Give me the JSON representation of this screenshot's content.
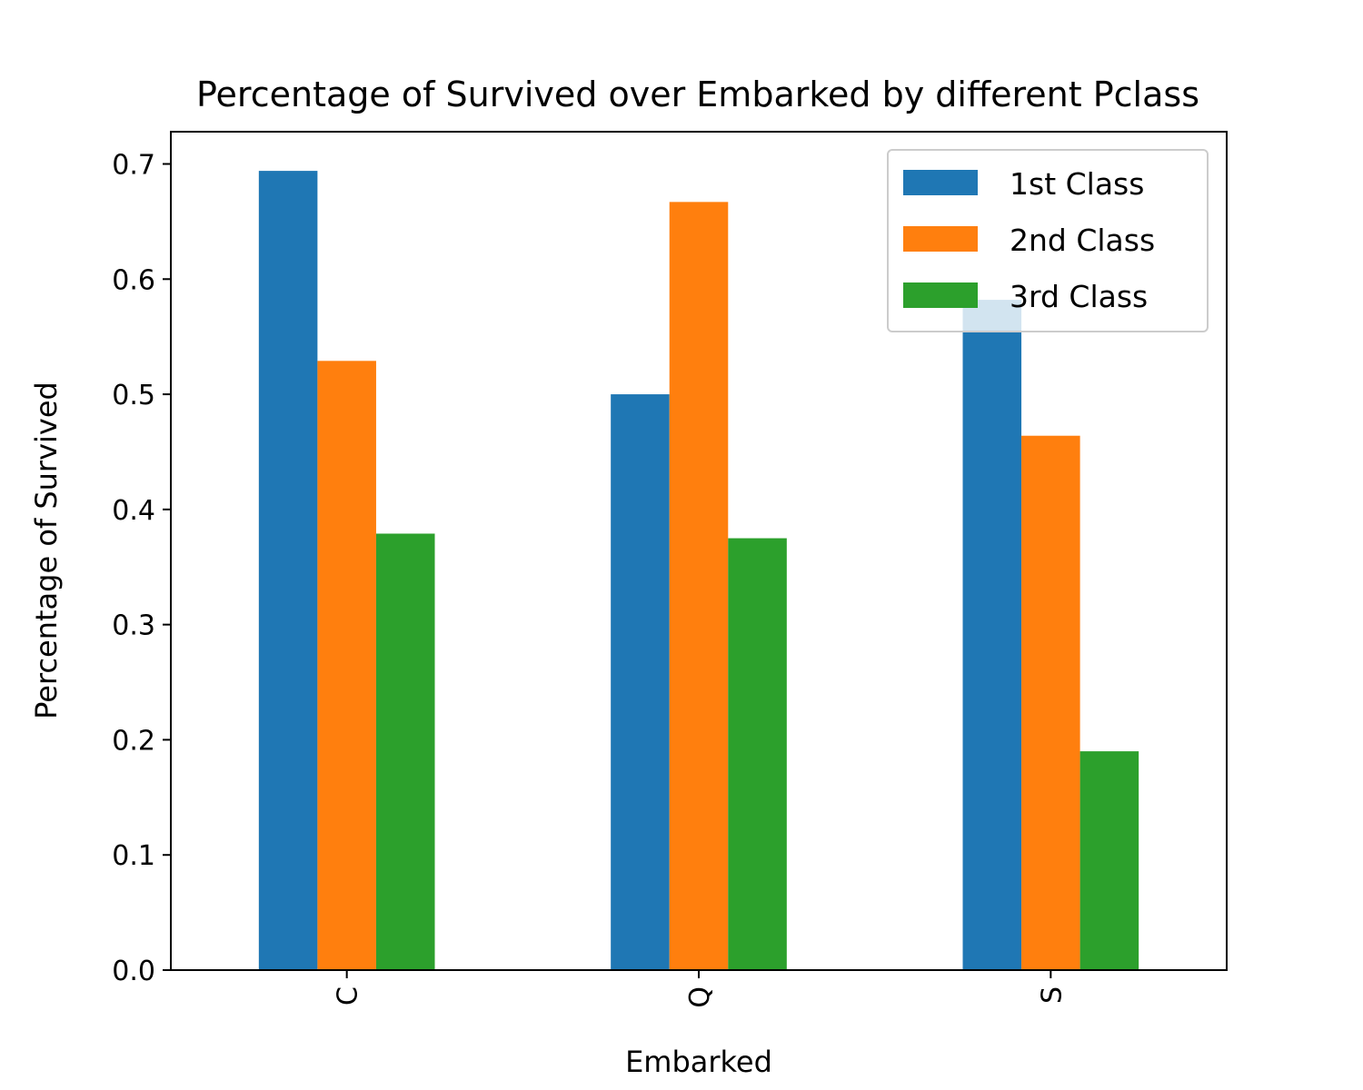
{
  "chart_data": {
    "type": "bar",
    "title": "Percentage of Survived over Embarked by different Pclass",
    "xlabel": "Embarked",
    "ylabel": "Percentage of Survived",
    "categories": [
      "C",
      "Q",
      "S"
    ],
    "series": [
      {
        "name": "1st Class",
        "color": "#1f77b4",
        "values": [
          0.694,
          0.5,
          0.582
        ]
      },
      {
        "name": "2nd Class",
        "color": "#ff7f0e",
        "values": [
          0.529,
          0.667,
          0.464
        ]
      },
      {
        "name": "3rd Class",
        "color": "#2ca02c",
        "values": [
          0.379,
          0.375,
          0.19
        ]
      }
    ],
    "ylim": [
      0,
      0.728
    ],
    "yticks": [
      "0.0",
      "0.1",
      "0.2",
      "0.3",
      "0.4",
      "0.5",
      "0.6",
      "0.7"
    ],
    "grid": false,
    "legend_position": "top-right"
  }
}
